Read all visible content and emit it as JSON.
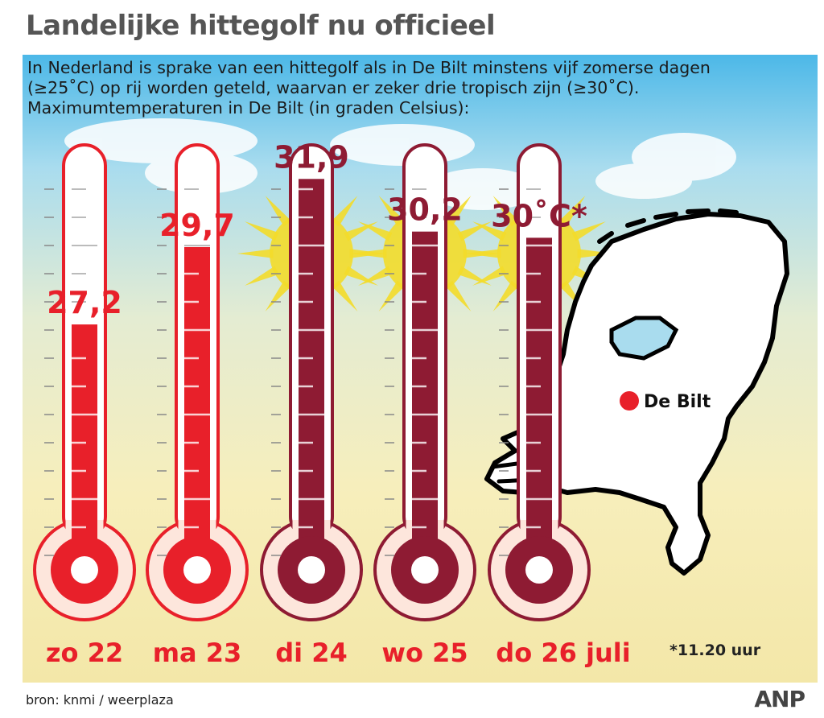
{
  "title": "Landelijke hittegolf nu officieel",
  "intro": [
    "In Nederland is sprake van een hittegolf als in De Bilt minstens vijf zomerse dagen",
    " (≥25˚C) op rij worden geteld, waarvan er zeker drie tropisch zijn (≥30˚C).",
    "Maximumtemperaturen in De Bilt (in graden Celsius):"
  ],
  "colors": {
    "warm": "#e8202a",
    "tropical": "#8e1b33",
    "warm_label": "#e8202a",
    "tropical_label": "#8e1b33",
    "sun": "#f3dc2a"
  },
  "map": {
    "label": "De Bilt",
    "marker_color": "#e8202a"
  },
  "footnote": "*11.20 uur",
  "source": "bron: knmi  / weerplaza",
  "brand": "ANP",
  "chart_data": {
    "type": "bar",
    "categories": [
      "zo 22",
      "ma 23",
      "di 24",
      "wo 25",
      "do 26 juli"
    ],
    "values": [
      27.2,
      29.7,
      31.9,
      30.2,
      30
    ],
    "value_labels": [
      "27,2",
      "29,7",
      "31,9",
      "30,2",
      "30˚C*"
    ],
    "tropical": [
      false,
      false,
      true,
      true,
      true
    ],
    "ylim": [
      20,
      33
    ],
    "title": "",
    "xlabel": "",
    "ylabel": ""
  }
}
